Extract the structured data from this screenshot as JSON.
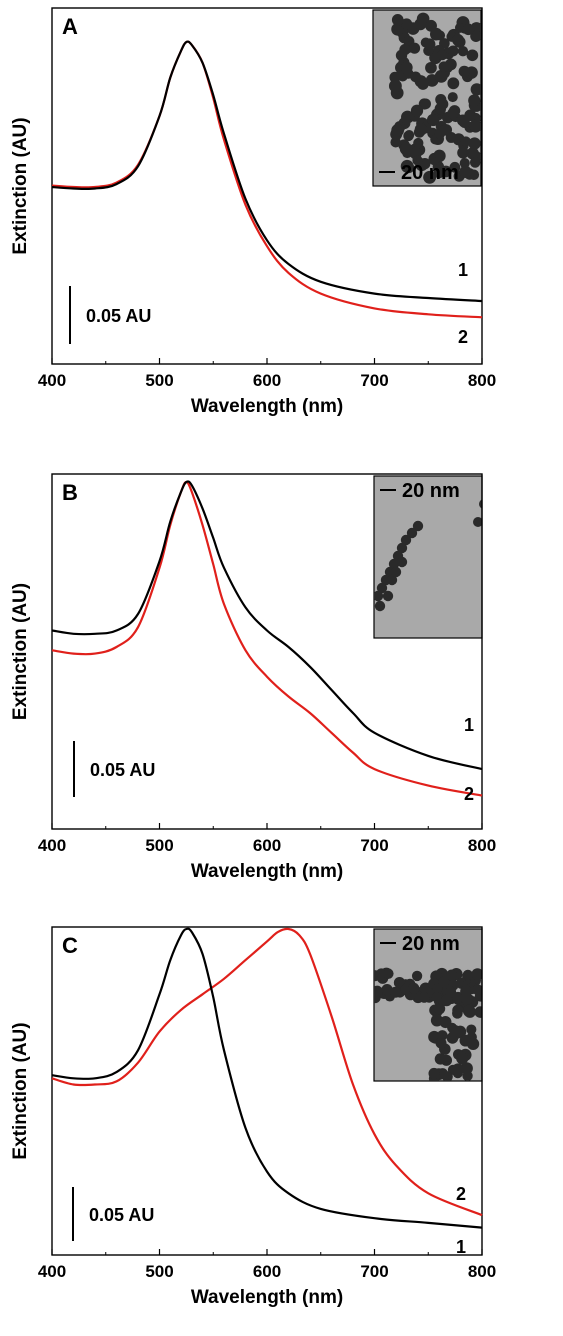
{
  "chart_data": [
    {
      "type": "line",
      "panel_letter": "A",
      "xlabel": "Wavelength (nm)",
      "ylabel": "Extinction (AU)",
      "xlim": [
        400,
        800
      ],
      "x_ticks": [
        "400",
        "500",
        "600",
        "700",
        "800"
      ],
      "y_ticks": [],
      "grid": false,
      "scale_bar_label": "0.05 AU",
      "inset": {
        "scale_label": "20 nm",
        "particle_density": "dense-cluster"
      },
      "colors": {
        "1": "#000000",
        "2": "#e0201b"
      },
      "series": [
        {
          "name": "1",
          "x": [
            400,
            420,
            440,
            460,
            480,
            500,
            510,
            520,
            525,
            530,
            540,
            550,
            560,
            580,
            600,
            620,
            650,
            700,
            750,
            800
          ],
          "y": [
            0.51,
            0.505,
            0.505,
            0.52,
            0.58,
            0.75,
            0.88,
            0.97,
            1.0,
            0.99,
            0.93,
            0.82,
            0.69,
            0.47,
            0.33,
            0.25,
            0.19,
            0.15,
            0.135,
            0.125
          ]
        },
        {
          "name": "2",
          "x": [
            400,
            420,
            440,
            460,
            480,
            500,
            510,
            520,
            525,
            530,
            540,
            550,
            560,
            580,
            600,
            620,
            650,
            700,
            750,
            800
          ],
          "y": [
            0.515,
            0.51,
            0.51,
            0.525,
            0.585,
            0.75,
            0.88,
            0.97,
            1.0,
            0.99,
            0.93,
            0.81,
            0.67,
            0.45,
            0.31,
            0.22,
            0.15,
            0.1,
            0.08,
            0.07
          ]
        }
      ]
    },
    {
      "type": "line",
      "panel_letter": "B",
      "xlabel": "Wavelength (nm)",
      "ylabel": "Extinction (AU)",
      "xlim": [
        400,
        800
      ],
      "x_ticks": [
        "400",
        "500",
        "600",
        "700",
        "800"
      ],
      "y_ticks": [],
      "grid": false,
      "scale_bar_label": "0.05 AU",
      "inset": {
        "scale_label": "20 nm",
        "particle_density": "chain"
      },
      "colors": {
        "1": "#000000",
        "2": "#e0201b"
      },
      "series": [
        {
          "name": "1",
          "x": [
            400,
            420,
            440,
            460,
            480,
            500,
            510,
            520,
            525,
            530,
            540,
            550,
            560,
            580,
            600,
            620,
            640,
            660,
            680,
            700,
            750,
            800
          ],
          "y": [
            0.55,
            0.54,
            0.54,
            0.55,
            0.6,
            0.76,
            0.88,
            0.97,
            1.0,
            0.99,
            0.92,
            0.83,
            0.74,
            0.62,
            0.55,
            0.5,
            0.44,
            0.37,
            0.3,
            0.24,
            0.17,
            0.13
          ]
        },
        {
          "name": "2",
          "x": [
            400,
            420,
            440,
            460,
            480,
            500,
            510,
            520,
            525,
            530,
            540,
            550,
            560,
            580,
            600,
            620,
            640,
            660,
            680,
            700,
            750,
            800
          ],
          "y": [
            0.49,
            0.48,
            0.48,
            0.5,
            0.56,
            0.74,
            0.87,
            0.97,
            1.0,
            0.97,
            0.87,
            0.75,
            0.63,
            0.49,
            0.41,
            0.35,
            0.3,
            0.24,
            0.18,
            0.13,
            0.08,
            0.05
          ]
        }
      ]
    },
    {
      "type": "line",
      "panel_letter": "C",
      "xlabel": "Wavelength (nm)",
      "ylabel": "Extinction (AU)",
      "xlim": [
        400,
        800
      ],
      "x_ticks": [
        "400",
        "500",
        "600",
        "700",
        "800"
      ],
      "y_ticks": [],
      "grid": false,
      "scale_bar_label": "0.05 AU",
      "inset": {
        "scale_label": "20 nm",
        "particle_density": "network"
      },
      "colors": {
        "1": "#000000",
        "2": "#e0201b"
      },
      "series": [
        {
          "name": "1",
          "x": [
            400,
            420,
            440,
            460,
            480,
            500,
            510,
            520,
            525,
            530,
            540,
            550,
            560,
            580,
            600,
            620,
            650,
            700,
            750,
            800
          ],
          "y": [
            0.53,
            0.52,
            0.52,
            0.54,
            0.61,
            0.79,
            0.9,
            0.98,
            1.0,
            0.99,
            0.92,
            0.78,
            0.61,
            0.36,
            0.22,
            0.15,
            0.1,
            0.07,
            0.055,
            0.04
          ]
        },
        {
          "name": "2",
          "x": [
            400,
            420,
            440,
            460,
            480,
            500,
            520,
            540,
            560,
            580,
            600,
            610,
            620,
            630,
            640,
            660,
            680,
            700,
            720,
            750,
            800
          ],
          "y": [
            0.52,
            0.5,
            0.5,
            0.51,
            0.57,
            0.67,
            0.74,
            0.79,
            0.84,
            0.9,
            0.96,
            0.99,
            1.0,
            0.98,
            0.92,
            0.72,
            0.5,
            0.34,
            0.24,
            0.15,
            0.08
          ]
        }
      ]
    }
  ]
}
